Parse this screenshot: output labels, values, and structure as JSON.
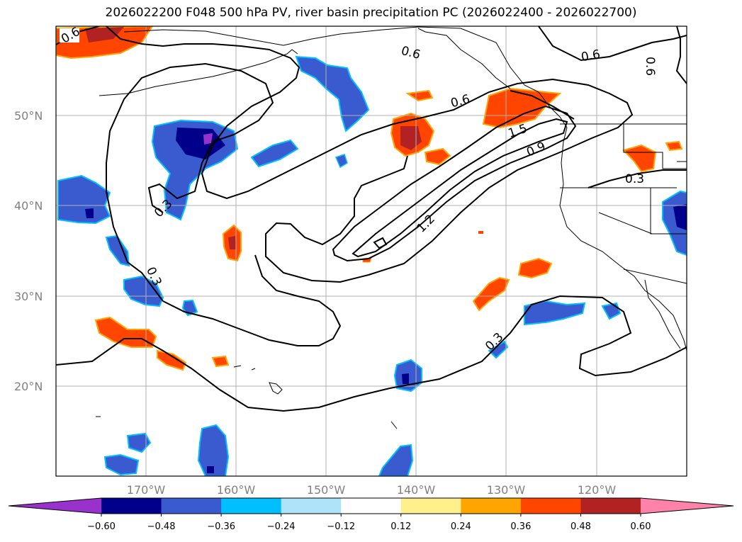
{
  "title": "2026022200 F048 500 hPa PV, river basin precipitation PC (2026022400 - 2026022700)",
  "latitude_labels": [
    "50°N",
    "40°N",
    "30°N",
    "20°N"
  ],
  "longitude_labels": [
    "170°W",
    "160°W",
    "150°W",
    "140°W",
    "130°W",
    "120°W"
  ],
  "contour_labels": [
    "0.6",
    "0.6",
    "0.6",
    "0.6",
    "0.6",
    "1.5",
    "0.9",
    "1.2",
    "0.3",
    "0.3",
    "0.3",
    "0.3"
  ],
  "colorbar": {
    "ticks": [
      "−0.60",
      "−0.48",
      "−0.36",
      "−0.24",
      "−0.12",
      "0.12",
      "0.24",
      "0.36",
      "0.48",
      "0.60"
    ],
    "colors": [
      "#9932cc",
      "#00008b",
      "#3a5bd0",
      "#00bfff",
      "#afe3fa",
      "#ffffff",
      "#fff08c",
      "#ffa500",
      "#ff4500",
      "#b22222",
      "#ff82ab"
    ]
  },
  "colors": {
    "contour": "#000000",
    "grid": "#b0b0b0",
    "coast": "#000000"
  }
}
